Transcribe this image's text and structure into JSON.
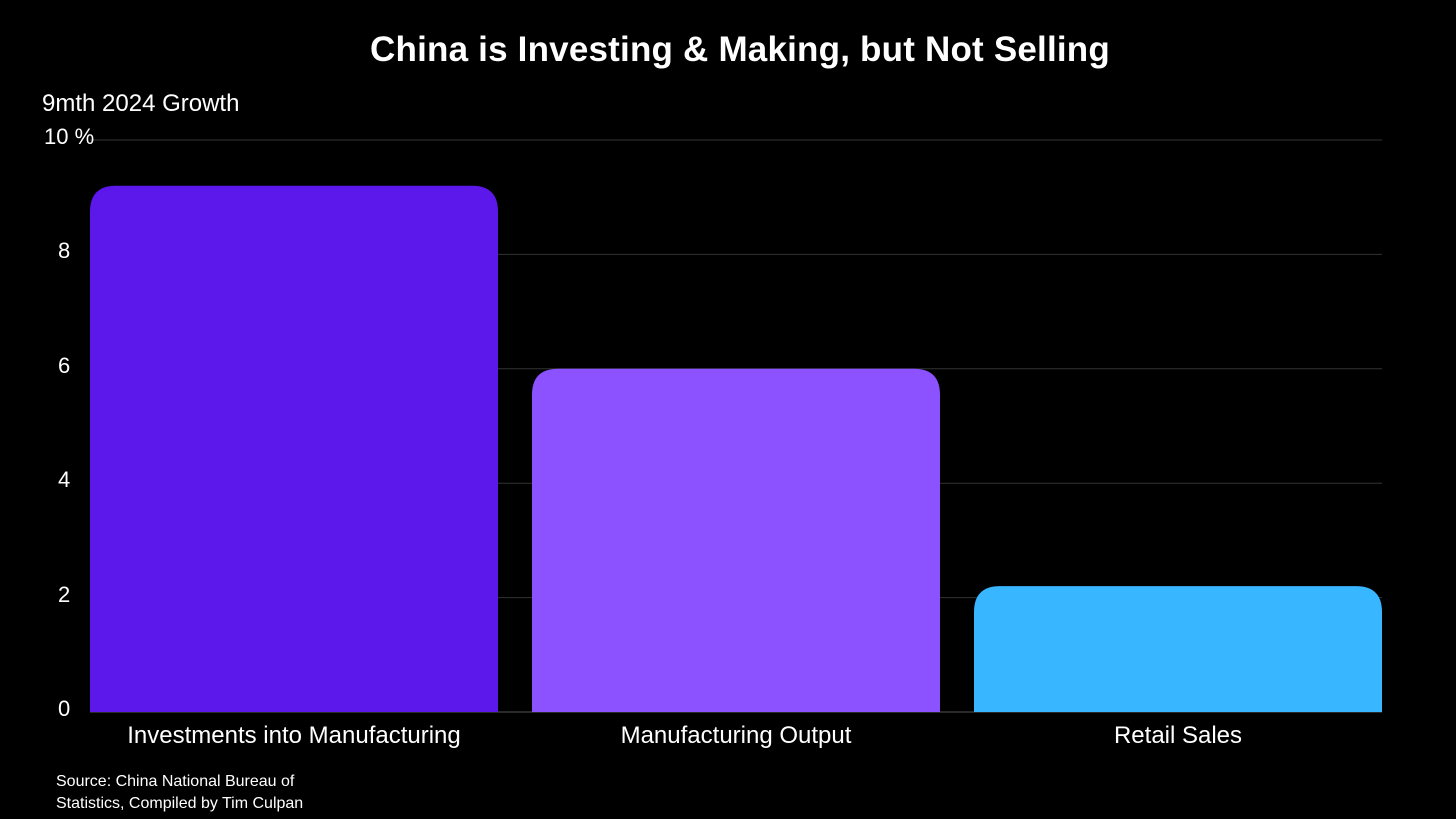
{
  "chart_data": {
    "type": "bar",
    "title": "China is Investing & Making, but Not Selling",
    "ylabel": "9mth 2024 Growth",
    "xlabel": "",
    "categories": [
      "Investments into Manufacturing",
      "Manufacturing Output",
      "Retail Sales"
    ],
    "values": [
      9.2,
      6.0,
      2.2
    ],
    "colors": [
      "#5c17eb",
      "#8c52ff",
      "#38b6ff"
    ],
    "ylim": [
      0,
      10
    ],
    "yticks": [
      {
        "value": 0,
        "label": "0"
      },
      {
        "value": 2,
        "label": "2"
      },
      {
        "value": 4,
        "label": "4"
      },
      {
        "value": 6,
        "label": "6"
      },
      {
        "value": 8,
        "label": "8"
      },
      {
        "value": 10,
        "label": "10 %"
      }
    ],
    "grid": true,
    "gridColor": "#333333",
    "source": "Source: China National Bureau of Statistics, Compiled by Tim Culpan"
  }
}
